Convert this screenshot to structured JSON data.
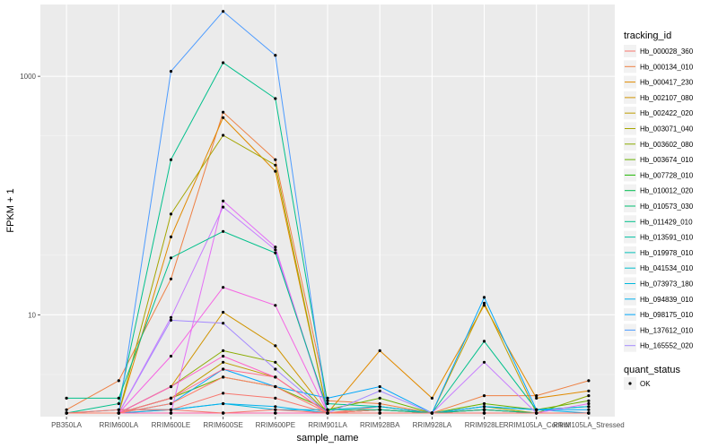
{
  "chart_data": {
    "type": "line",
    "xlabel": "sample_name",
    "ylabel": "FPKM + 1",
    "y_scale": "log10",
    "ylim": [
      1.4,
      4000
    ],
    "y_ticks": [
      10,
      1000
    ],
    "y_tick_labels": [
      "10",
      "1000"
    ],
    "grid": true,
    "categories": [
      "PB350LA",
      "RRIM600LA",
      "RRIM600LE",
      "RRIM600SE",
      "RRIM600PE",
      "RRIM901LA",
      "RRIM928BA",
      "RRIM928LA",
      "RRIM928LE",
      "RRIM105LA_Control",
      "RRIM105LA_Stressed"
    ],
    "legend": {
      "title": "tracking_id",
      "position": "right"
    },
    "status_legend": {
      "title": "quant_status",
      "label": "OK"
    },
    "series": [
      {
        "name": "Hb_000028_360",
        "color": "#F8766D",
        "values": [
          1.5,
          1.5,
          1.6,
          2.2,
          2.0,
          1.5,
          1.7,
          1.5,
          1.6,
          1.5,
          1.5
        ]
      },
      {
        "name": "Hb_000134_010",
        "color": "#EE8043",
        "values": [
          1.6,
          2.8,
          20,
          500,
          200,
          1.9,
          1.8,
          1.5,
          2.1,
          2.1,
          2.8
        ]
      },
      {
        "name": "Hb_000417_230",
        "color": "#E18A00",
        "values": [
          1.5,
          1.5,
          45,
          450,
          160,
          1.5,
          5.0,
          2.0,
          12,
          2.0,
          2.3
        ]
      },
      {
        "name": "Hb_002107_080",
        "color": "#D09400",
        "values": [
          1.5,
          1.5,
          2.5,
          10.5,
          5.5,
          1.5,
          1.6,
          1.5,
          1.6,
          1.5,
          1.5
        ]
      },
      {
        "name": "Hb_002422_020",
        "color": "#BD9D00",
        "values": [
          1.5,
          1.5,
          2.0,
          4.0,
          3.0,
          1.5,
          1.6,
          1.5,
          12.5,
          1.5,
          1.5
        ]
      },
      {
        "name": "Hb_003071_040",
        "color": "#A5A500",
        "values": [
          1.5,
          1.5,
          70,
          320,
          180,
          1.5,
          1.5,
          1.5,
          1.6,
          1.5,
          1.5
        ]
      },
      {
        "name": "Hb_003602_080",
        "color": "#8AAB00",
        "values": [
          1.5,
          1.5,
          2.5,
          5.0,
          4.0,
          1.5,
          1.6,
          1.5,
          1.7,
          1.5,
          2.1
        ]
      },
      {
        "name": "Hb_003674_010",
        "color": "#68B100",
        "values": [
          1.5,
          1.5,
          2.0,
          3.0,
          2.5,
          1.6,
          2.0,
          1.5,
          1.8,
          1.6,
          1.9
        ]
      },
      {
        "name": "Hb_007728_010",
        "color": "#1FB700",
        "values": [
          1.5,
          1.5,
          1.5,
          1.5,
          1.5,
          1.5,
          1.5,
          1.5,
          1.5,
          1.5,
          1.5
        ]
      },
      {
        "name": "Hb_010012_020",
        "color": "#00BB4E",
        "values": [
          1.5,
          1.5,
          1.5,
          1.5,
          1.5,
          1.5,
          1.5,
          1.5,
          1.5,
          1.5,
          1.5
        ]
      },
      {
        "name": "Hb_010573_030",
        "color": "#00BE70",
        "values": [
          1.5,
          1.5,
          1.5,
          1.5,
          1.5,
          1.5,
          1.5,
          1.5,
          1.5,
          1.5,
          1.5
        ]
      },
      {
        "name": "Hb_011429_010",
        "color": "#00C08B",
        "values": [
          1.5,
          1.8,
          200,
          1300,
          650,
          1.8,
          1.7,
          1.5,
          6.0,
          1.6,
          1.7
        ]
      },
      {
        "name": "Hb_013591_010",
        "color": "#00C1A3",
        "values": [
          1.5,
          1.5,
          1.5,
          1.5,
          1.5,
          1.5,
          1.5,
          1.5,
          1.5,
          1.5,
          1.5
        ]
      },
      {
        "name": "Hb_019978_010",
        "color": "#00C0B8",
        "values": [
          1.5,
          1.5,
          1.5,
          1.5,
          1.5,
          1.5,
          1.5,
          1.5,
          1.5,
          1.5,
          1.5
        ]
      },
      {
        "name": "Hb_041534_010",
        "color": "#00BDCC",
        "values": [
          1.5,
          1.5,
          1.5,
          1.5,
          1.5,
          1.5,
          1.5,
          1.5,
          1.5,
          1.5,
          1.5
        ]
      },
      {
        "name": "Hb_073973_180",
        "color": "#00B8DE",
        "values": [
          1.5,
          1.6,
          1.6,
          1.8,
          1.6,
          1.6,
          1.7,
          1.5,
          1.7,
          1.6,
          1.7
        ]
      },
      {
        "name": "Hb_094839_010",
        "color": "#00B1EE",
        "values": [
          1.5,
          1.5,
          1.6,
          1.8,
          1.7,
          1.5,
          1.6,
          1.5,
          1.7,
          1.6,
          1.5
        ]
      },
      {
        "name": "Hb_098175_010",
        "color": "#00A7FA",
        "values": [
          1.5,
          1.5,
          1.8,
          3.5,
          2.5,
          2.0,
          2.5,
          1.5,
          14,
          1.6,
          1.6
        ]
      },
      {
        "name": "Hb_137612_010",
        "color": "#4C9BFF",
        "values": [
          1.5,
          1.5,
          1100,
          3500,
          1500,
          1.5,
          1.5,
          1.5,
          1.6,
          1.5,
          1.5
        ]
      },
      {
        "name": "Hb_165552_020",
        "color": "#A58AFF",
        "values": [
          1.5,
          1.5,
          9.0,
          8.5,
          3.5,
          1.5,
          2.3,
          1.5,
          1.5,
          1.5,
          1.5
        ]
      },
      {
        "name": "",
        "color": "#C77CFF",
        "values": [
          1.5,
          1.5,
          9.5,
          80,
          35,
          1.5,
          1.5,
          1.5,
          4.0,
          1.5,
          1.5
        ]
      },
      {
        "name": "",
        "color": "#E46FF6",
        "values": [
          1.5,
          1.5,
          1.5,
          90,
          37,
          1.5,
          1.5,
          1.5,
          1.5,
          1.5,
          1.8
        ]
      },
      {
        "name": "",
        "color": "#F566E3",
        "values": [
          1.5,
          1.5,
          4.5,
          17,
          12,
          1.5,
          1.5,
          1.5,
          1.5,
          1.5,
          1.5
        ]
      },
      {
        "name": "",
        "color": "#FF61C9",
        "values": [
          1.5,
          1.5,
          2.5,
          4.5,
          3.0,
          1.5,
          1.5,
          1.5,
          1.5,
          1.5,
          1.5
        ]
      },
      {
        "name": "",
        "color": "#FF64AD",
        "values": [
          1.5,
          1.5,
          1.5,
          1.5,
          1.5,
          1.5,
          1.5,
          1.5,
          1.5,
          1.5,
          1.5
        ]
      },
      {
        "name": "",
        "color": "#FF6C8C",
        "values": [
          1.5,
          1.5,
          2.0,
          3.5,
          3.0,
          1.5,
          1.6,
          1.5,
          1.6,
          1.5,
          1.5
        ]
      },
      {
        "name": "",
        "color": "#FF7F6A",
        "values": [
          1.5,
          1.5,
          1.8,
          3.0,
          2.5,
          1.5,
          1.6,
          1.5,
          1.6,
          1.5,
          1.5
        ]
      },
      {
        "name": "",
        "color": "#00C08B",
        "values": [
          2.0,
          2.0,
          30,
          50,
          33,
          1.6,
          1.6,
          1.5,
          1.6,
          1.5,
          1.5
        ]
      },
      {
        "name": "",
        "color": "#F8766D",
        "values": [
          1.5,
          1.6,
          1.6,
          1.5,
          1.6,
          1.5,
          1.5,
          1.5,
          1.5,
          1.5,
          1.5
        ]
      }
    ]
  }
}
